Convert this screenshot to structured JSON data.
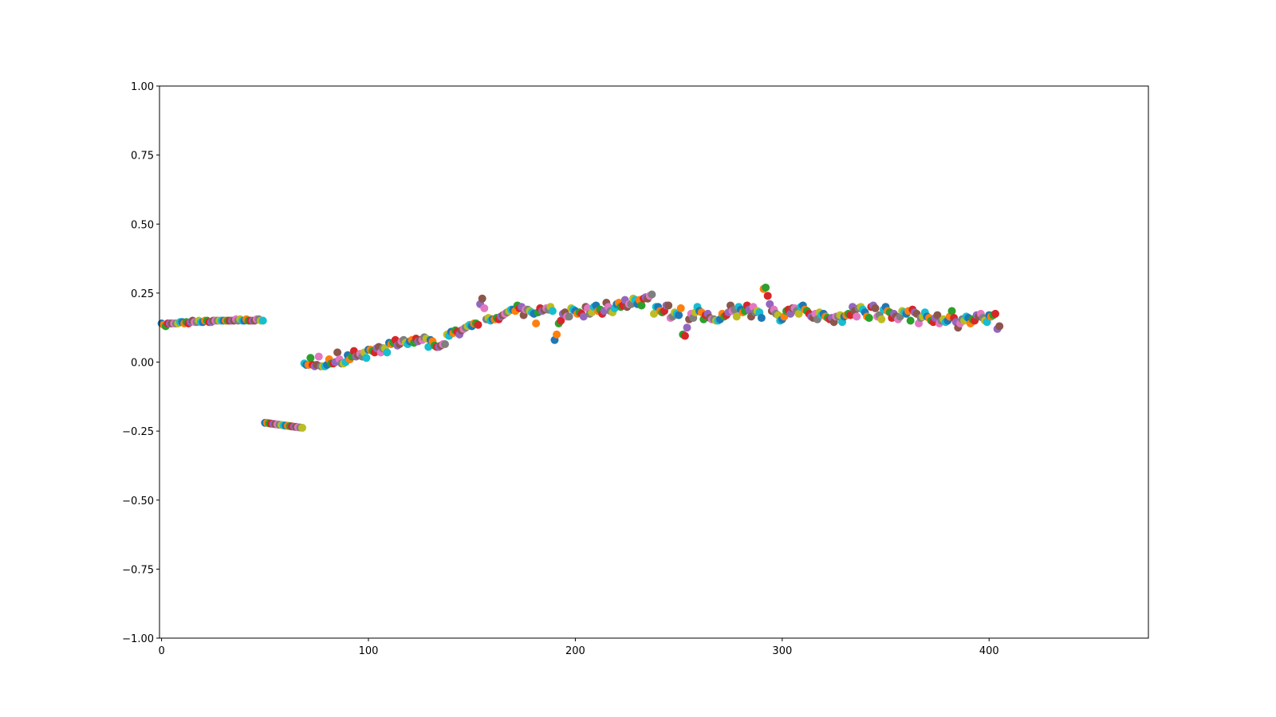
{
  "chart_data": {
    "type": "scatter",
    "color_cycle": [
      "#1f77b4",
      "#ff7f0e",
      "#2ca02c",
      "#d62728",
      "#9467bd",
      "#8c564b",
      "#e377c2",
      "#7f7f7f",
      "#bcbd22",
      "#17becf"
    ],
    "xlim": [
      -1,
      477
    ],
    "ylim": [
      -1,
      1
    ],
    "xticks": [
      0,
      100,
      200,
      300,
      400
    ],
    "yticks": [
      {
        "value": -1,
        "label": "−1.00"
      },
      {
        "value": -0.75,
        "label": "−0.75"
      },
      {
        "value": -0.5,
        "label": "−0.50"
      },
      {
        "value": -0.25,
        "label": "−0.25"
      },
      {
        "value": 0,
        "label": "0.00"
      },
      0.25,
      {
        "value": 0.5,
        "label": "0.50"
      },
      0.75,
      {
        "value": 1,
        "label": "1.00"
      }
    ],
    "x": [
      0,
      1,
      2,
      3,
      4,
      5,
      6,
      7,
      8,
      9,
      10,
      11,
      12,
      13,
      14,
      15,
      16,
      17,
      18,
      19,
      20,
      21,
      22,
      23,
      24,
      25,
      26,
      27,
      28,
      29,
      30,
      31,
      32,
      33,
      34,
      35,
      36,
      37,
      38,
      39,
      40,
      41,
      42,
      43,
      44,
      45,
      46,
      47,
      48,
      49,
      50,
      51,
      52,
      53,
      54,
      55,
      56,
      57,
      58,
      59,
      60,
      61,
      62,
      63,
      64,
      65,
      66,
      67,
      68,
      69,
      70,
      71,
      72,
      73,
      74,
      75,
      76,
      77,
      78,
      79,
      80,
      81,
      82,
      83,
      84,
      85,
      86,
      87,
      88,
      89,
      90,
      91,
      92,
      93,
      94,
      95,
      96,
      97,
      98,
      99,
      100,
      101,
      102,
      103,
      104,
      105,
      106,
      107,
      108,
      109,
      110,
      111,
      112,
      113,
      114,
      115,
      116,
      117,
      118,
      119,
      120,
      121,
      122,
      123,
      124,
      125,
      126,
      127,
      128,
      129,
      130,
      131,
      132,
      133,
      134,
      135,
      136,
      137,
      138,
      139,
      140,
      141,
      142,
      143,
      144,
      145,
      146,
      147,
      148,
      149,
      150,
      151,
      152,
      153,
      154,
      155,
      156,
      157,
      158,
      159,
      160,
      161,
      162,
      163,
      164,
      165,
      166,
      167,
      168,
      169,
      170,
      171,
      172,
      173,
      174,
      175,
      176,
      177,
      178,
      179,
      180,
      181,
      182,
      183,
      184,
      185,
      186,
      187,
      188,
      189,
      190,
      191,
      192,
      193,
      194,
      195,
      196,
      197,
      198,
      199,
      200,
      201,
      202,
      203,
      204,
      205,
      206,
      207,
      208,
      209,
      210,
      211,
      212,
      213,
      214,
      215,
      216,
      217,
      218,
      219,
      220,
      221,
      222,
      223,
      224,
      225,
      226,
      227,
      228,
      229,
      230,
      231,
      232,
      233,
      234,
      235,
      236,
      237,
      238,
      239,
      240,
      241,
      242,
      243,
      244,
      245,
      246,
      247,
      248,
      249,
      250,
      251,
      252,
      253,
      254,
      255,
      256,
      257,
      258,
      259,
      260,
      261,
      262,
      263,
      264,
      265,
      266,
      267,
      268,
      269,
      270,
      271,
      272,
      273,
      274,
      275,
      276,
      277,
      278,
      279,
      280,
      281,
      282,
      283,
      284,
      285,
      286,
      287,
      288,
      289,
      290,
      291,
      292,
      293,
      294,
      295,
      296,
      297,
      298,
      299,
      300,
      301,
      302,
      303,
      304,
      305,
      306,
      307,
      308,
      309,
      310,
      311,
      312,
      313,
      314,
      315,
      316,
      317,
      318,
      319,
      320,
      321,
      322,
      323,
      324,
      325,
      326,
      327,
      328,
      329,
      330,
      331,
      332,
      333,
      334,
      335,
      336,
      337,
      338,
      339,
      340,
      341,
      342,
      343,
      344,
      345,
      346,
      347,
      348,
      349,
      350,
      351,
      352,
      353,
      354,
      355,
      356,
      357,
      358,
      359,
      360,
      361,
      362,
      363,
      364,
      365,
      366,
      367,
      368,
      369,
      370,
      371,
      372,
      373,
      374,
      375,
      376,
      377,
      378,
      379,
      380,
      381,
      382,
      383,
      384,
      385,
      386,
      387,
      388,
      389,
      390,
      391,
      392,
      393,
      394,
      395,
      396,
      397,
      398,
      399,
      400,
      401,
      402,
      403,
      404,
      405
    ],
    "values": [
      0.14,
      0.135,
      0.13,
      0.14,
      0.14,
      0.14,
      0.14,
      0.14,
      0.14,
      0.145,
      0.145,
      0.14,
      0.145,
      0.14,
      0.145,
      0.15,
      0.145,
      0.145,
      0.15,
      0.145,
      0.145,
      0.15,
      0.15,
      0.145,
      0.145,
      0.15,
      0.15,
      0.15,
      0.15,
      0.15,
      0.15,
      0.15,
      0.15,
      0.15,
      0.15,
      0.15,
      0.155,
      0.15,
      0.155,
      0.15,
      0.15,
      0.155,
      0.15,
      0.15,
      0.15,
      0.15,
      0.155,
      0.155,
      0.15,
      0.15,
      -0.22,
      -0.22,
      -0.222,
      -0.223,
      -0.224,
      -0.225,
      -0.226,
      -0.227,
      -0.228,
      -0.229,
      -0.23,
      -0.231,
      -0.232,
      -0.233,
      -0.234,
      -0.235,
      -0.236,
      -0.237,
      -0.238,
      -0.005,
      -0.01,
      -0.01,
      0.015,
      -0.01,
      -0.015,
      -0.01,
      0.02,
      -0.015,
      -0.015,
      -0.015,
      -0.01,
      0.01,
      -0.005,
      -0.005,
      0.0,
      0.035,
      0.01,
      -0.005,
      -0.005,
      0.0,
      0.025,
      0.01,
      0.02,
      0.04,
      0.02,
      0.025,
      0.03,
      0.02,
      0.035,
      0.015,
      0.045,
      0.045,
      0.04,
      0.035,
      0.05,
      0.055,
      0.035,
      0.05,
      0.05,
      0.035,
      0.07,
      0.065,
      0.07,
      0.08,
      0.06,
      0.065,
      0.075,
      0.08,
      0.07,
      0.065,
      0.075,
      0.08,
      0.07,
      0.085,
      0.075,
      0.08,
      0.08,
      0.09,
      0.085,
      0.055,
      0.08,
      0.075,
      0.06,
      0.055,
      0.055,
      0.06,
      0.065,
      0.065,
      0.1,
      0.095,
      0.11,
      0.105,
      0.115,
      0.11,
      0.1,
      0.115,
      0.12,
      0.125,
      0.13,
      0.135,
      0.13,
      0.14,
      0.14,
      0.135,
      0.21,
      0.23,
      0.195,
      0.155,
      0.16,
      0.15,
      0.155,
      0.155,
      0.16,
      0.155,
      0.165,
      0.17,
      0.175,
      0.18,
      0.185,
      0.19,
      0.19,
      0.185,
      0.205,
      0.195,
      0.2,
      0.17,
      0.19,
      0.19,
      0.185,
      0.18,
      0.175,
      0.14,
      0.18,
      0.195,
      0.185,
      0.19,
      0.195,
      0.19,
      0.2,
      0.185,
      0.08,
      0.1,
      0.14,
      0.15,
      0.175,
      0.18,
      0.165,
      0.165,
      0.195,
      0.19,
      0.185,
      0.175,
      0.18,
      0.175,
      0.165,
      0.2,
      0.195,
      0.175,
      0.18,
      0.2,
      0.205,
      0.185,
      0.19,
      0.175,
      0.185,
      0.215,
      0.2,
      0.185,
      0.18,
      0.195,
      0.21,
      0.215,
      0.2,
      0.205,
      0.225,
      0.2,
      0.21,
      0.21,
      0.23,
      0.225,
      0.21,
      0.225,
      0.205,
      0.23,
      0.235,
      0.23,
      0.24,
      0.245,
      0.175,
      0.2,
      0.2,
      0.185,
      0.18,
      0.185,
      0.205,
      0.205,
      0.16,
      0.165,
      0.18,
      0.175,
      0.17,
      0.195,
      0.1,
      0.095,
      0.125,
      0.155,
      0.175,
      0.16,
      0.18,
      0.2,
      0.185,
      0.18,
      0.155,
      0.17,
      0.175,
      0.16,
      0.155,
      0.155,
      0.15,
      0.15,
      0.155,
      0.175,
      0.165,
      0.17,
      0.18,
      0.205,
      0.185,
      0.19,
      0.165,
      0.2,
      0.19,
      0.18,
      0.185,
      0.205,
      0.19,
      0.165,
      0.2,
      0.18,
      0.185,
      0.18,
      0.16,
      0.265,
      0.27,
      0.24,
      0.21,
      0.185,
      0.19,
      0.175,
      0.17,
      0.15,
      0.155,
      0.165,
      0.185,
      0.19,
      0.175,
      0.195,
      0.195,
      0.185,
      0.175,
      0.2,
      0.205,
      0.19,
      0.185,
      0.175,
      0.165,
      0.16,
      0.175,
      0.155,
      0.18,
      0.17,
      0.175,
      0.165,
      0.16,
      0.155,
      0.16,
      0.145,
      0.165,
      0.165,
      0.17,
      0.145,
      0.165,
      0.17,
      0.175,
      0.17,
      0.2,
      0.185,
      0.165,
      0.195,
      0.2,
      0.19,
      0.18,
      0.165,
      0.16,
      0.2,
      0.205,
      0.195,
      0.165,
      0.17,
      0.155,
      0.19,
      0.2,
      0.185,
      0.18,
      0.16,
      0.175,
      0.165,
      0.155,
      0.165,
      0.185,
      0.18,
      0.175,
      0.185,
      0.15,
      0.19,
      0.18,
      0.175,
      0.14,
      0.16,
      0.165,
      0.18,
      0.165,
      0.16,
      0.15,
      0.145,
      0.16,
      0.17,
      0.14,
      0.15,
      0.155,
      0.145,
      0.15,
      0.165,
      0.185,
      0.16,
      0.145,
      0.125,
      0.14,
      0.155,
      0.15,
      0.165,
      0.16,
      0.14,
      0.155,
      0.15,
      0.17,
      0.165,
      0.175,
      0.16,
      0.15,
      0.145,
      0.17,
      0.165,
      0.17,
      0.175,
      0.12,
      0.13
    ]
  }
}
